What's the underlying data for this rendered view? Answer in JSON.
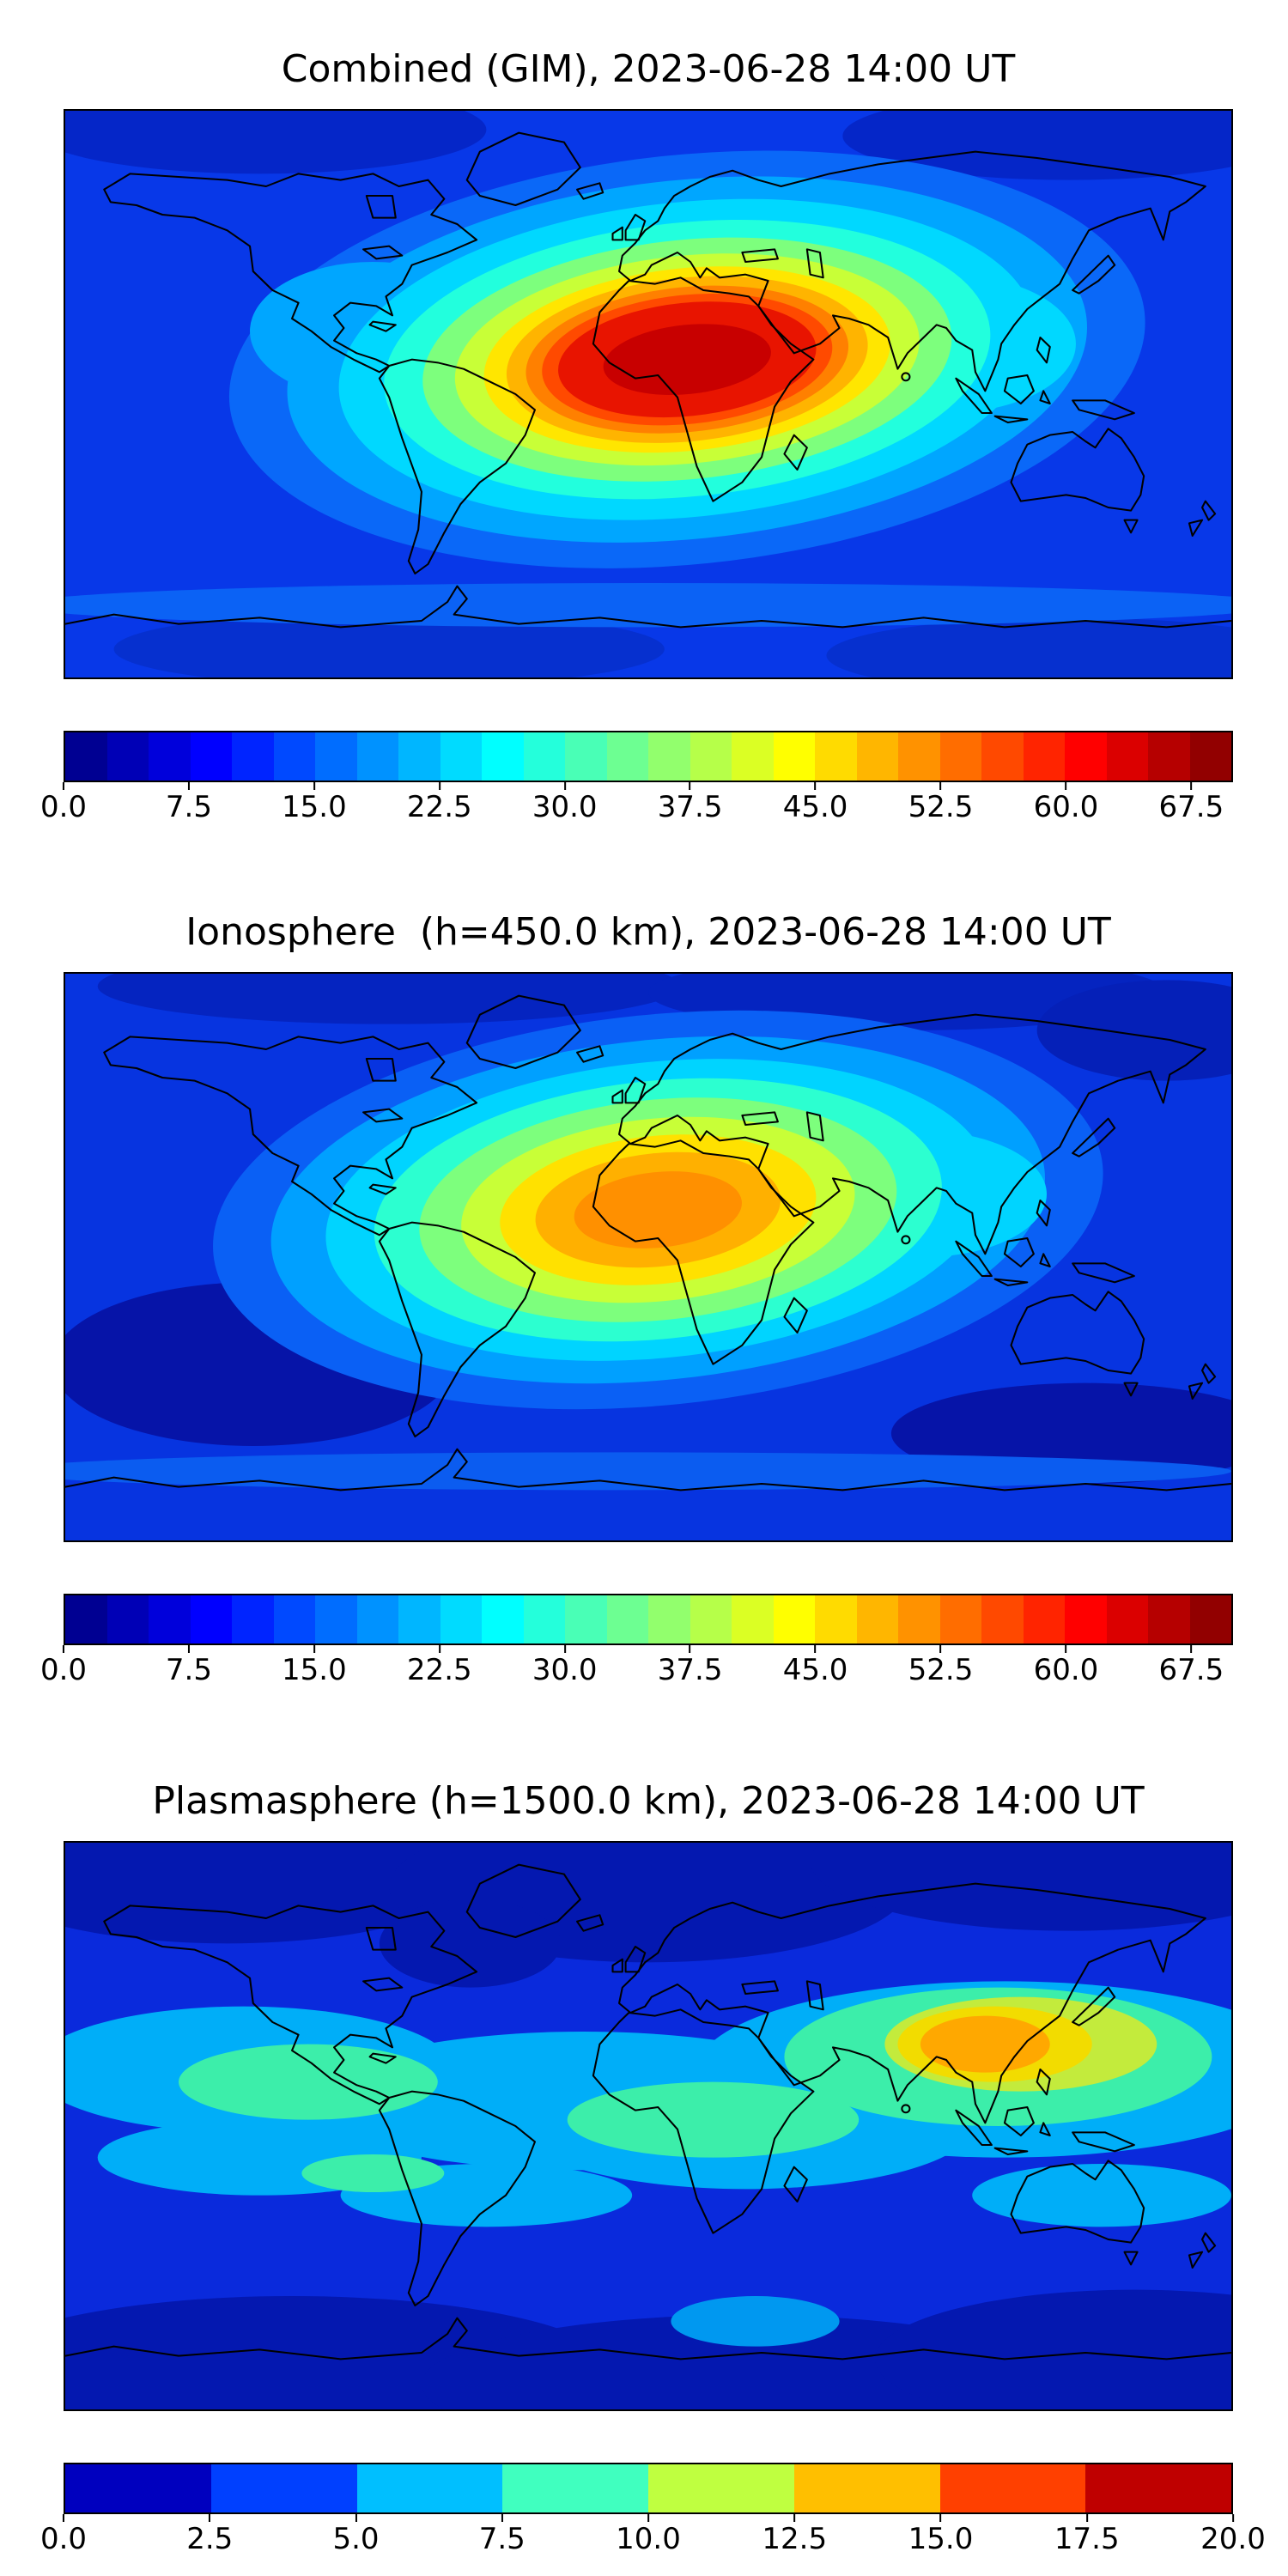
{
  "page": {
    "background": "#ffffff"
  },
  "chart_data": [
    {
      "type": "heatmap",
      "title": "Combined (GIM), 2023-06-28 14:00 UT",
      "map": "global equirectangular with coastlines",
      "colormap": "jet",
      "colorbar": {
        "min": 0,
        "max": 70,
        "n_segments": 28,
        "tick_labels": [
          "0.0",
          "7.5",
          "15.0",
          "22.5",
          "30.0",
          "37.5",
          "45.0",
          "52.5",
          "60.0",
          "67.5"
        ],
        "tick_values": [
          0,
          7.5,
          15,
          22.5,
          30,
          37.5,
          45,
          52.5,
          60,
          67.5
        ]
      },
      "peak": {
        "value": 66,
        "lon": 8,
        "lat": 13
      },
      "grid": {
        "lons": [
          -150,
          -100,
          -50,
          0,
          50,
          100,
          150
        ],
        "lats": [
          60,
          30,
          0,
          -30,
          -60
        ],
        "values": [
          [
            9,
            11,
            13,
            15,
            15,
            12,
            9
          ],
          [
            12,
            18,
            30,
            46,
            42,
            26,
            15
          ],
          [
            16,
            26,
            42,
            62,
            52,
            32,
            19
          ],
          [
            10,
            13,
            19,
            26,
            23,
            16,
            11
          ],
          [
            6,
            7,
            8,
            9,
            9,
            8,
            7
          ]
        ]
      }
    },
    {
      "type": "heatmap",
      "title": "Ionosphere  (h=450.0 km), 2023-06-28 14:00 UT",
      "map": "global equirectangular with coastlines",
      "colormap": "jet",
      "colorbar": {
        "min": 0,
        "max": 70,
        "n_segments": 28,
        "tick_labels": [
          "0.0",
          "7.5",
          "15.0",
          "22.5",
          "30.0",
          "37.5",
          "45.0",
          "52.5",
          "60.0",
          "67.5"
        ],
        "tick_values": [
          0,
          7.5,
          15,
          22.5,
          30,
          37.5,
          45,
          52.5,
          60,
          67.5
        ]
      },
      "peak": {
        "value": 50,
        "lon": 4,
        "lat": 10
      },
      "grid": {
        "lons": [
          -150,
          -100,
          -50,
          0,
          50,
          100,
          150
        ],
        "lats": [
          60,
          30,
          0,
          -30,
          -60
        ],
        "values": [
          [
            7,
            9,
            10,
            12,
            12,
            9,
            7
          ],
          [
            9,
            14,
            24,
            36,
            32,
            20,
            11
          ],
          [
            12,
            20,
            33,
            48,
            40,
            25,
            14
          ],
          [
            7,
            10,
            14,
            19,
            17,
            12,
            8
          ],
          [
            4,
            5,
            6,
            6,
            6,
            5,
            4
          ]
        ]
      }
    },
    {
      "type": "heatmap",
      "title": "Plasmasphere (h=1500.0 km), 2023-06-28 14:00 UT",
      "map": "global equirectangular with coastlines",
      "colormap": "jet",
      "colorbar": {
        "min": 0,
        "max": 20,
        "n_segments": 8,
        "tick_labels": [
          "0.0",
          "2.5",
          "5.0",
          "7.5",
          "10.0",
          "12.5",
          "15.0",
          "17.5",
          "20.0"
        ],
        "tick_values": [
          0,
          2.5,
          5,
          7.5,
          10,
          12.5,
          15,
          17.5,
          20
        ]
      },
      "peak": {
        "value": 16,
        "lon": 100,
        "lat": 15
      },
      "grid": {
        "lons": [
          -150,
          -100,
          -50,
          0,
          50,
          100,
          150
        ],
        "lats": [
          60,
          30,
          0,
          -30,
          -60
        ],
        "values": [
          [
            2,
            2,
            3,
            3,
            3,
            3,
            2
          ],
          [
            4,
            4,
            5,
            6,
            9,
            11,
            7
          ],
          [
            6,
            6,
            7,
            8,
            10,
            12,
            9
          ],
          [
            4,
            5,
            6,
            5,
            6,
            7,
            6
          ],
          [
            2,
            2,
            3,
            3,
            3,
            3,
            3
          ]
        ]
      }
    }
  ]
}
